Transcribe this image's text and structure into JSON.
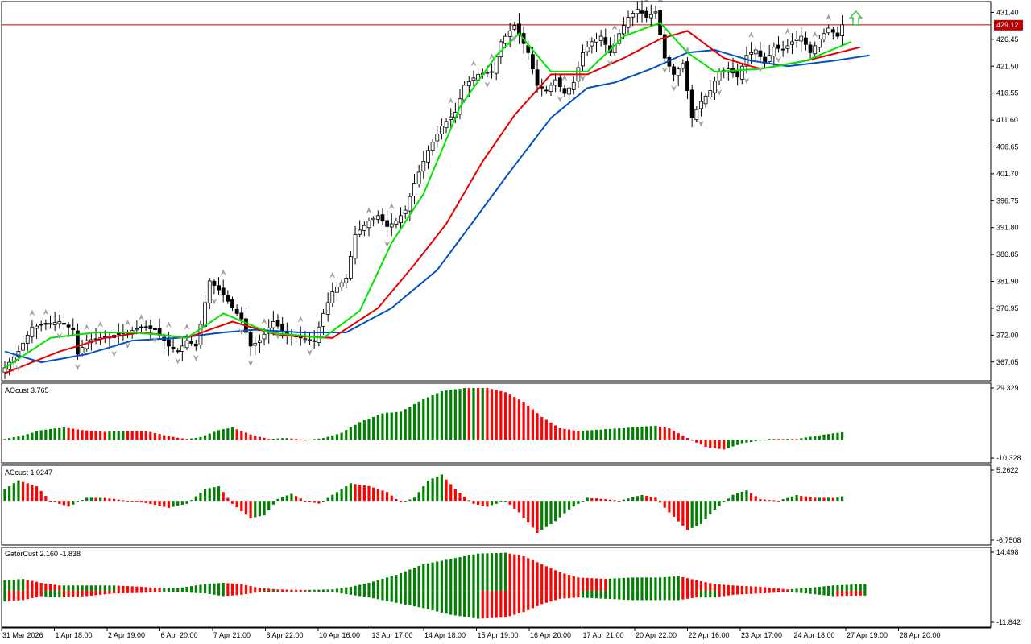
{
  "colors": {
    "background": "#ffffff",
    "axis": "#000000",
    "bull_body": "#ffffff",
    "bear_body": "#000000",
    "candle_outline": "#000000",
    "lips": "#00e600",
    "teeth": "#e60000",
    "jaw": "#0050c8",
    "hist_up": "#008000",
    "hist_down": "#ff0000",
    "price_line": "#c00000",
    "fractal": "#a0a0a0",
    "signal_arrow": "#40c040"
  },
  "current_price": "429.12",
  "chart_data": [
    {
      "type": "candlestick",
      "panel": "main",
      "ylim": [
        364.5,
        432.5
      ],
      "y_ticks": [
        "431.40",
        "426.45",
        "421.50",
        "416.55",
        "411.60",
        "406.65",
        "401.70",
        "396.75",
        "391.80",
        "386.85",
        "381.90",
        "376.95",
        "372.00",
        "367.05"
      ],
      "x_tick_labels": [
        "31 Mar 2026",
        "1 Apr 18:00",
        "2 Apr 19:00",
        "6 Apr 20:00",
        "7 Apr 21:00",
        "8 Apr 22:00",
        "10 Apr 16:00",
        "13 Apr 17:00",
        "14 Apr 18:00",
        "15 Apr 19:00",
        "16 Apr 20:00",
        "17 Apr 21:00",
        "20 Apr 22:00",
        "22 Apr 16:00",
        "23 Apr 17:00",
        "24 Apr 18:00",
        "27 Apr 19:00",
        "28 Apr 20:00"
      ],
      "close_anchors": [
        [
          0,
          366.0
        ],
        [
          3,
          369.0
        ],
        [
          6,
          373.5
        ],
        [
          9,
          374.0
        ],
        [
          12,
          374.5
        ],
        [
          15,
          373.0
        ],
        [
          16,
          368.5
        ],
        [
          18,
          371.0
        ],
        [
          21,
          371.5
        ],
        [
          24,
          372.0
        ],
        [
          27,
          372.5
        ],
        [
          30,
          373.5
        ],
        [
          33,
          373.0
        ],
        [
          36,
          370.0
        ],
        [
          38,
          369.0
        ],
        [
          40,
          371.0
        ],
        [
          42,
          370.0
        ],
        [
          45,
          382.0
        ],
        [
          48,
          379.5
        ],
        [
          50,
          377.0
        ],
        [
          52,
          375.0
        ],
        [
          54,
          370.0
        ],
        [
          56,
          371.0
        ],
        [
          59,
          374.5
        ],
        [
          62,
          372.0
        ],
        [
          65,
          371.5
        ],
        [
          68,
          371.0
        ],
        [
          70,
          376.0
        ],
        [
          72,
          380.0
        ],
        [
          75,
          382.5
        ],
        [
          77,
          390.5
        ],
        [
          80,
          393.0
        ],
        [
          82,
          394.0
        ],
        [
          84,
          392.0
        ],
        [
          86,
          393.0
        ],
        [
          88,
          395.0
        ],
        [
          90,
          400.0
        ],
        [
          93,
          406.0
        ],
        [
          96,
          410.5
        ],
        [
          99,
          413.0
        ],
        [
          101,
          418.0
        ],
        [
          104,
          420.0
        ],
        [
          107,
          420.5
        ],
        [
          109,
          426.0
        ],
        [
          112,
          429.0
        ],
        [
          115,
          424.0
        ],
        [
          117,
          418.0
        ],
        [
          119,
          417.0
        ],
        [
          121,
          419.0
        ],
        [
          123,
          416.5
        ],
        [
          125,
          418.5
        ],
        [
          127,
          424.0
        ],
        [
          129,
          426.0
        ],
        [
          131,
          427.0
        ],
        [
          133,
          424.0
        ],
        [
          135,
          427.5
        ],
        [
          137,
          430.5
        ],
        [
          139,
          432.0
        ],
        [
          141,
          430.5
        ],
        [
          143,
          431.5
        ],
        [
          145,
          423.0
        ],
        [
          147,
          420.0
        ],
        [
          149,
          422.0
        ],
        [
          151,
          412.0
        ],
        [
          153,
          415.0
        ],
        [
          155,
          417.0
        ],
        [
          157,
          420.5
        ],
        [
          159,
          421.0
        ],
        [
          161,
          419.5
        ],
        [
          163,
          423.5
        ],
        [
          165,
          424.5
        ],
        [
          167,
          422.0
        ],
        [
          169,
          425.0
        ],
        [
          171,
          424.5
        ],
        [
          173,
          426.0
        ],
        [
          175,
          427.0
        ],
        [
          177,
          424.0
        ],
        [
          179,
          426.5
        ],
        [
          181,
          428.5
        ],
        [
          183,
          427.0
        ],
        [
          184,
          429.12
        ]
      ],
      "alligator": {
        "lips": [
          [
            0,
            366.0
          ],
          [
            10,
            371.5
          ],
          [
            20,
            372.5
          ],
          [
            28,
            372.5
          ],
          [
            35,
            372.0
          ],
          [
            40,
            371.5
          ],
          [
            48,
            376.0
          ],
          [
            58,
            372.5
          ],
          [
            70,
            371.5
          ],
          [
            78,
            376.5
          ],
          [
            85,
            389.0
          ],
          [
            92,
            398.0
          ],
          [
            100,
            414.0
          ],
          [
            108,
            423.5
          ],
          [
            113,
            427.5
          ],
          [
            120,
            420.5
          ],
          [
            128,
            420.5
          ],
          [
            136,
            427.0
          ],
          [
            144,
            429.5
          ],
          [
            150,
            424.0
          ],
          [
            156,
            420.5
          ],
          [
            166,
            421.0
          ],
          [
            176,
            422.5
          ],
          [
            186,
            426.0
          ]
        ],
        "teeth": [
          [
            0,
            365.0
          ],
          [
            12,
            369.0
          ],
          [
            22,
            371.5
          ],
          [
            30,
            372.5
          ],
          [
            40,
            371.5
          ],
          [
            50,
            374.5
          ],
          [
            60,
            372.0
          ],
          [
            72,
            371.5
          ],
          [
            82,
            377.0
          ],
          [
            90,
            385.0
          ],
          [
            97,
            392.5
          ],
          [
            105,
            404.0
          ],
          [
            112,
            412.5
          ],
          [
            120,
            420.0
          ],
          [
            128,
            420.0
          ],
          [
            136,
            423.0
          ],
          [
            144,
            426.5
          ],
          [
            150,
            428.0
          ],
          [
            158,
            423.0
          ],
          [
            166,
            421.0
          ],
          [
            176,
            422.5
          ],
          [
            188,
            425.0
          ]
        ],
        "jaw": [
          [
            0,
            369.0
          ],
          [
            8,
            367.0
          ],
          [
            18,
            368.5
          ],
          [
            28,
            371.0
          ],
          [
            38,
            371.5
          ],
          [
            48,
            372.5
          ],
          [
            55,
            373.0
          ],
          [
            65,
            372.5
          ],
          [
            75,
            372.5
          ],
          [
            85,
            377.0
          ],
          [
            95,
            384.0
          ],
          [
            103,
            393.0
          ],
          [
            110,
            401.0
          ],
          [
            120,
            412.0
          ],
          [
            128,
            417.5
          ],
          [
            134,
            418.5
          ],
          [
            142,
            421.0
          ],
          [
            150,
            424.0
          ],
          [
            156,
            424.5
          ],
          [
            164,
            422.5
          ],
          [
            172,
            421.5
          ],
          [
            182,
            422.5
          ],
          [
            190,
            423.5
          ]
        ]
      },
      "fractals_up": [
        6,
        9,
        18,
        21,
        27,
        30,
        36,
        40,
        48,
        57,
        65,
        72,
        80,
        85,
        98,
        103,
        107,
        123,
        134,
        141,
        144,
        150,
        164,
        172,
        178,
        181
      ],
      "fractals_down": [
        3,
        12,
        16,
        24,
        27,
        33,
        38,
        42,
        46,
        52,
        54,
        60,
        67,
        84,
        106,
        112,
        122,
        127,
        133,
        145,
        147,
        153,
        157,
        163,
        166,
        170
      ],
      "signal_arrow_index": 185
    },
    {
      "type": "histogram",
      "panel": "ao",
      "title": "AOcust 3.765",
      "ylim": [
        -10.328,
        29.329
      ],
      "y_ticks": [
        "29.329",
        "-10.328"
      ],
      "anchors": [
        [
          0,
          0.5
        ],
        [
          4,
          2.5
        ],
        [
          8,
          5.5
        ],
        [
          13,
          7.0
        ],
        [
          17,
          5.5
        ],
        [
          22,
          4.5
        ],
        [
          27,
          5.0
        ],
        [
          32,
          4.5
        ],
        [
          36,
          2.0
        ],
        [
          40,
          0.5
        ],
        [
          43,
          1.5
        ],
        [
          47,
          5.5
        ],
        [
          50,
          7.0
        ],
        [
          54,
          3.0
        ],
        [
          58,
          0.5
        ],
        [
          62,
          1.0
        ],
        [
          66,
          0.0
        ],
        [
          70,
          1.0
        ],
        [
          74,
          4.0
        ],
        [
          78,
          10.0
        ],
        [
          83,
          15.0
        ],
        [
          87,
          16.0
        ],
        [
          92,
          23.0
        ],
        [
          96,
          27.5
        ],
        [
          101,
          29.3
        ],
        [
          106,
          29.3
        ],
        [
          110,
          27.0
        ],
        [
          114,
          21.5
        ],
        [
          118,
          13.0
        ],
        [
          122,
          6.5
        ],
        [
          126,
          5.0
        ],
        [
          132,
          6.0
        ],
        [
          138,
          7.0
        ],
        [
          143,
          8.0
        ],
        [
          146,
          6.5
        ],
        [
          150,
          1.0
        ],
        [
          154,
          -4.0
        ],
        [
          158,
          -5.5
        ],
        [
          162,
          -2.0
        ],
        [
          168,
          0.5
        ],
        [
          174,
          0.5
        ],
        [
          180,
          3.0
        ],
        [
          186,
          5.0
        ]
      ]
    },
    {
      "type": "histogram",
      "panel": "ac",
      "title": "ACcust 1.0247",
      "ylim": [
        -6.7508,
        5.2622
      ],
      "y_ticks": [
        "5.2622",
        "-6.7508"
      ],
      "anchors": [
        [
          0,
          2.0
        ],
        [
          3,
          3.5
        ],
        [
          7,
          2.5
        ],
        [
          10,
          0.0
        ],
        [
          14,
          -1.0
        ],
        [
          18,
          0.5
        ],
        [
          22,
          0.5
        ],
        [
          27,
          0.0
        ],
        [
          32,
          -0.5
        ],
        [
          36,
          -1.2
        ],
        [
          40,
          -0.5
        ],
        [
          44,
          2.0
        ],
        [
          47,
          2.5
        ],
        [
          50,
          -0.5
        ],
        [
          54,
          -3.0
        ],
        [
          57,
          -2.5
        ],
        [
          60,
          0.3
        ],
        [
          63,
          1.2
        ],
        [
          66,
          0.0
        ],
        [
          69,
          -0.5
        ],
        [
          72,
          1.0
        ],
        [
          76,
          3.0
        ],
        [
          80,
          2.5
        ],
        [
          84,
          1.5
        ],
        [
          87,
          -0.3
        ],
        [
          90,
          0.5
        ],
        [
          93,
          3.5
        ],
        [
          96,
          4.5
        ],
        [
          99,
          2.0
        ],
        [
          103,
          -0.5
        ],
        [
          106,
          -1.0
        ],
        [
          110,
          0.0
        ],
        [
          113,
          -2.0
        ],
        [
          117,
          -5.5
        ],
        [
          121,
          -3.5
        ],
        [
          124,
          -1.5
        ],
        [
          128,
          0.5
        ],
        [
          132,
          0.3
        ],
        [
          135,
          0.0
        ],
        [
          140,
          1.0
        ],
        [
          143,
          0.5
        ],
        [
          146,
          -2.0
        ],
        [
          150,
          -5.0
        ],
        [
          153,
          -4.0
        ],
        [
          156,
          -1.5
        ],
        [
          160,
          1.0
        ],
        [
          163,
          1.8
        ],
        [
          166,
          0.3
        ],
        [
          170,
          0.0
        ],
        [
          174,
          1.0
        ],
        [
          178,
          0.5
        ],
        [
          182,
          0.5
        ],
        [
          186,
          1.0
        ]
      ]
    },
    {
      "type": "histogram",
      "panel": "gator",
      "title": "GatorCust 2.160 -1.838",
      "ylim": [
        -11.842,
        14.498
      ],
      "y_ticks": [
        "14.498",
        "-11.842"
      ],
      "upper": [
        [
          0,
          4.0
        ],
        [
          4,
          4.5
        ],
        [
          8,
          3.0
        ],
        [
          12,
          2.0
        ],
        [
          18,
          2.0
        ],
        [
          24,
          2.0
        ],
        [
          30,
          1.5
        ],
        [
          34,
          1.0
        ],
        [
          38,
          1.0
        ],
        [
          44,
          2.5
        ],
        [
          48,
          3.0
        ],
        [
          52,
          2.5
        ],
        [
          56,
          1.0
        ],
        [
          60,
          0.5
        ],
        [
          66,
          0.3
        ],
        [
          72,
          0.5
        ],
        [
          76,
          1.5
        ],
        [
          80,
          3.0
        ],
        [
          86,
          6.0
        ],
        [
          92,
          10.0
        ],
        [
          98,
          12.0
        ],
        [
          104,
          14.0
        ],
        [
          110,
          14.3
        ],
        [
          114,
          13.0
        ],
        [
          118,
          10.0
        ],
        [
          122,
          7.0
        ],
        [
          126,
          5.0
        ],
        [
          132,
          4.5
        ],
        [
          138,
          5.0
        ],
        [
          144,
          5.0
        ],
        [
          148,
          5.5
        ],
        [
          152,
          4.0
        ],
        [
          156,
          2.5
        ],
        [
          160,
          2.0
        ],
        [
          166,
          1.5
        ],
        [
          172,
          0.5
        ],
        [
          176,
          1.0
        ],
        [
          182,
          2.0
        ],
        [
          188,
          2.5
        ]
      ],
      "lower": [
        [
          0,
          -4.0
        ],
        [
          4,
          -3.5
        ],
        [
          8,
          -2.0
        ],
        [
          12,
          -2.5
        ],
        [
          18,
          -2.0
        ],
        [
          24,
          -1.0
        ],
        [
          30,
          -0.8
        ],
        [
          34,
          -0.5
        ],
        [
          38,
          -0.5
        ],
        [
          44,
          -1.0
        ],
        [
          48,
          -2.0
        ],
        [
          52,
          -1.5
        ],
        [
          56,
          -0.5
        ],
        [
          60,
          -0.5
        ],
        [
          66,
          -0.2
        ],
        [
          72,
          -0.5
        ],
        [
          76,
          -1.5
        ],
        [
          80,
          -2.5
        ],
        [
          86,
          -4.5
        ],
        [
          92,
          -6.5
        ],
        [
          98,
          -9.0
        ],
        [
          104,
          -10.5
        ],
        [
          110,
          -10.0
        ],
        [
          114,
          -8.0
        ],
        [
          118,
          -5.0
        ],
        [
          122,
          -3.0
        ],
        [
          126,
          -2.5
        ],
        [
          132,
          -3.0
        ],
        [
          138,
          -3.5
        ],
        [
          144,
          -3.5
        ],
        [
          148,
          -3.5
        ],
        [
          152,
          -2.5
        ],
        [
          156,
          -2.5
        ],
        [
          160,
          -1.5
        ],
        [
          166,
          -1.0
        ],
        [
          172,
          -0.5
        ],
        [
          176,
          -1.0
        ],
        [
          182,
          -2.0
        ],
        [
          188,
          -1.8
        ]
      ]
    }
  ]
}
